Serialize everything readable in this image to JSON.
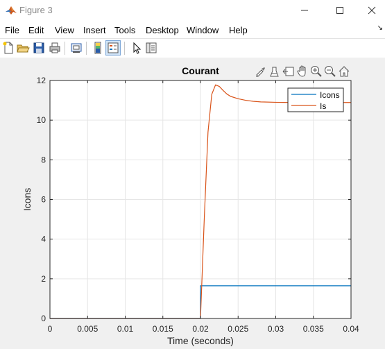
{
  "window": {
    "title": "Figure 3",
    "controls": [
      "minimize",
      "maximize",
      "close"
    ]
  },
  "menu": {
    "items": [
      "File",
      "Edit",
      "View",
      "Insert",
      "Tools",
      "Desktop",
      "Window",
      "Help"
    ]
  },
  "toolbar": {
    "buttons": [
      "new-figure-icon",
      "open-file-icon",
      "save-icon",
      "print-icon",
      "link-plot-icon",
      "colorbar-icon",
      "legend-icon",
      "pointer-icon",
      "property-inspector-icon"
    ],
    "active": "legend-icon"
  },
  "axes_toolbar": {
    "buttons": [
      "brush-icon",
      "data-tips-icon",
      "restore-view-icon",
      "pan-icon",
      "zoom-in-icon",
      "zoom-out-icon",
      "home-icon"
    ]
  },
  "colors": {
    "series_icons": "#0072bd",
    "series_is": "#d95319",
    "axes_bg": "#ffffff",
    "figure_bg": "#f0f0f0",
    "grid": "#e6e6e6"
  },
  "chart_data": {
    "type": "line",
    "title": "Courant",
    "xlabel": "Time (seconds)",
    "ylabel": "Icons",
    "xlim": [
      0,
      0.04
    ],
    "ylim": [
      0,
      12
    ],
    "xticks": [
      "0",
      "0.005",
      "0.01",
      "0.015",
      "0.02",
      "0.025",
      "0.03",
      "0.035",
      "0.04"
    ],
    "yticks": [
      "0",
      "2",
      "4",
      "6",
      "8",
      "10",
      "12"
    ],
    "grid": true,
    "legend_position": "top-right",
    "series": [
      {
        "name": "Icons",
        "x": [
          0,
          0.02,
          0.02,
          0.04
        ],
        "y": [
          0,
          0,
          1.65,
          1.65
        ]
      },
      {
        "name": "Is",
        "x": [
          0,
          0.02,
          0.0205,
          0.021,
          0.0215,
          0.022,
          0.0225,
          0.023,
          0.0235,
          0.024,
          0.025,
          0.026,
          0.027,
          0.028,
          0.03,
          0.032,
          0.035,
          0.04
        ],
        "y": [
          0,
          0,
          5.0,
          9.4,
          11.3,
          11.78,
          11.7,
          11.5,
          11.32,
          11.2,
          11.08,
          11.0,
          10.95,
          10.92,
          10.9,
          10.89,
          10.89,
          10.89
        ]
      }
    ]
  }
}
